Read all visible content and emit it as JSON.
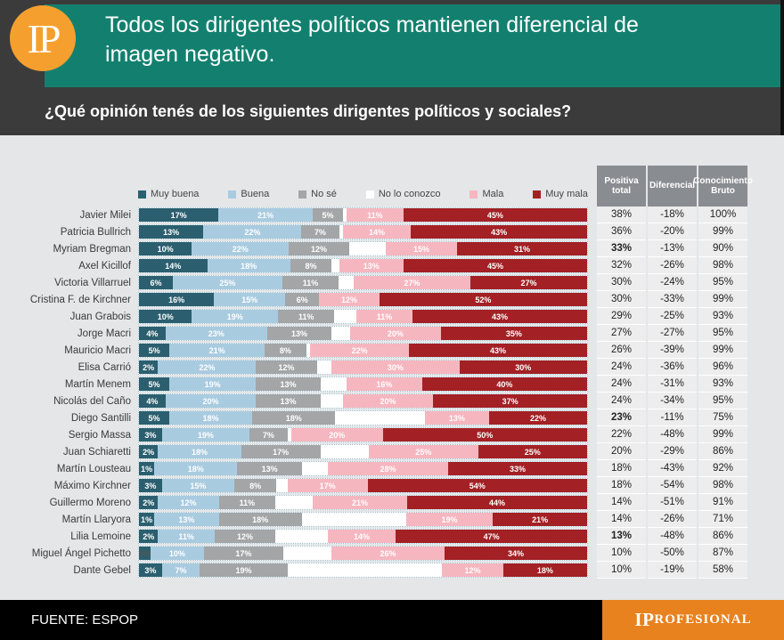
{
  "header": {
    "logo": "IP",
    "title": "Todos los dirigentes políticos mantienen diferencial de imagen negativo.",
    "question": "¿Qué opinión tenés de los siguientes dirigentes políticos y sociales?"
  },
  "colors": {
    "Muy buena": "#2B5F6F",
    "Buena": "#A9CBE0",
    "No sé": "#A4A5A7",
    "No lo conozco": "#FFFFFF",
    "Mala": "#F6B6BF",
    "Muy mala": "#A32024",
    "header_teal": "#13806F",
    "header_dark": "#3B3B3C",
    "logo_orange": "#F5A02E",
    "footer_orange": "#E8821E",
    "table_header_gray": "#898C90"
  },
  "chart_data": {
    "type": "bar",
    "orientation": "horizontal",
    "stacked": true,
    "unit": "%",
    "xlim": [
      0,
      100
    ],
    "legend_position": "top",
    "legend": [
      "Muy buena",
      "Buena",
      "No sé",
      "No lo conozco",
      "Mala",
      "Muy mala"
    ],
    "unlabeled_series": "No lo conozco",
    "categories": [
      "Javier Milei",
      "Patricia Bullrich",
      "Myriam Bregman",
      "Axel Kicillof",
      "Victoria Villarruel",
      "Cristina F. de Kirchner",
      "Juan Grabois",
      "Jorge Macri",
      "Mauricio Macri",
      "Elisa Carrió",
      "Martín Menem",
      "Nicolás del Caño",
      "Diego Santilli",
      "Sergio Massa",
      "Juan Schiaretti",
      "Martín Lousteau",
      "Máximo Kirchner",
      "Guillermo Moreno",
      "Martín Llaryora",
      "Lilia Lemoine",
      "Miguel Ángel Pichetto",
      "Dante Gebel"
    ],
    "series": [
      {
        "name": "Muy buena",
        "values": [
          17,
          13,
          10,
          14,
          6,
          16,
          10,
          4,
          5,
          2,
          5,
          4,
          5,
          3,
          2,
          1,
          3,
          2,
          1,
          2,
          0,
          3
        ]
      },
      {
        "name": "Buena",
        "values": [
          21,
          22,
          22,
          18,
          25,
          15,
          19,
          23,
          21,
          22,
          19,
          20,
          18,
          19,
          18,
          18,
          15,
          12,
          13,
          11,
          10,
          7
        ]
      },
      {
        "name": "No sé",
        "values": [
          5,
          7,
          12,
          8,
          11,
          6,
          11,
          13,
          8,
          12,
          13,
          13,
          18,
          7,
          17,
          13,
          8,
          11,
          18,
          12,
          17,
          19
        ]
      },
      {
        "name": "No lo conozco",
        "values": [
          1,
          1,
          10,
          2,
          4,
          0,
          6,
          5,
          1,
          4,
          7,
          6,
          24,
          1,
          13,
          7,
          3,
          10,
          28,
          14,
          13,
          41
        ]
      },
      {
        "name": "Mala",
        "values": [
          11,
          14,
          15,
          13,
          27,
          12,
          11,
          20,
          22,
          30,
          16,
          20,
          13,
          20,
          25,
          28,
          17,
          21,
          19,
          14,
          26,
          12
        ]
      },
      {
        "name": "Muy mala",
        "values": [
          45,
          43,
          31,
          45,
          27,
          52,
          43,
          35,
          43,
          30,
          40,
          37,
          22,
          50,
          25,
          33,
          54,
          44,
          21,
          47,
          34,
          18
        ]
      }
    ]
  },
  "table": {
    "headers": [
      "Positiva total",
      "Diferencial",
      "Conocimiento Bruto"
    ],
    "rows": [
      [
        "38%",
        "-18%",
        "100%"
      ],
      [
        "36%",
        "-20%",
        "99%"
      ],
      [
        "33%",
        "-13%",
        "90%"
      ],
      [
        "32%",
        "-26%",
        "98%"
      ],
      [
        "30%",
        "-24%",
        "95%"
      ],
      [
        "30%",
        "-33%",
        "99%"
      ],
      [
        "29%",
        "-25%",
        "93%"
      ],
      [
        "27%",
        "-27%",
        "95%"
      ],
      [
        "26%",
        "-39%",
        "99%"
      ],
      [
        "24%",
        "-36%",
        "96%"
      ],
      [
        "24%",
        "-31%",
        "93%"
      ],
      [
        "24%",
        "-34%",
        "95%"
      ],
      [
        "23%",
        "-11%",
        "75%"
      ],
      [
        "22%",
        "-48%",
        "99%"
      ],
      [
        "20%",
        "-29%",
        "86%"
      ],
      [
        "18%",
        "-43%",
        "92%"
      ],
      [
        "18%",
        "-54%",
        "98%"
      ],
      [
        "14%",
        "-51%",
        "91%"
      ],
      [
        "14%",
        "-26%",
        "71%"
      ],
      [
        "13%",
        "-48%",
        "86%"
      ],
      [
        "10%",
        "-50%",
        "87%"
      ],
      [
        "10%",
        "-19%",
        "58%"
      ]
    ],
    "bold_positiva_rows": [
      2,
      12,
      19
    ]
  },
  "footer": {
    "source": "FUENTE: ESPOP",
    "brand_prefix": "IP",
    "brand_rest": "ROFESIONAL"
  }
}
